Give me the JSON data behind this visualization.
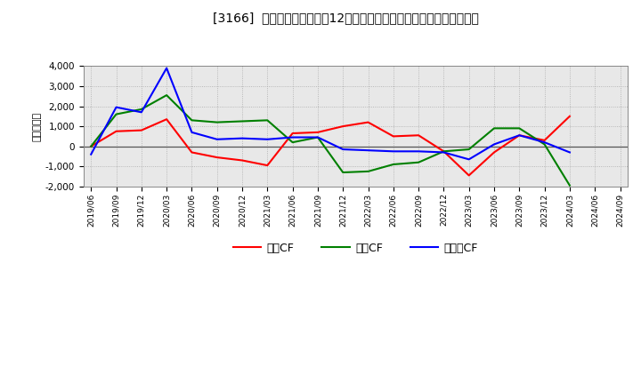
{
  "title": "[3166]  キャッシュフローの12か月移動合計の対前年同期増減額の推移",
  "ylabel": "（百万円）",
  "ylim": [
    -2000,
    4000
  ],
  "yticks": [
    -2000,
    -1000,
    0,
    1000,
    2000,
    3000,
    4000
  ],
  "x_labels": [
    "2019/06",
    "2019/09",
    "2019/12",
    "2020/03",
    "2020/06",
    "2020/09",
    "2020/12",
    "2021/03",
    "2021/06",
    "2021/09",
    "2021/12",
    "2022/03",
    "2022/06",
    "2022/09",
    "2022/12",
    "2023/03",
    "2023/06",
    "2023/09",
    "2023/12",
    "2024/03",
    "2024/06",
    "2024/09"
  ],
  "eigyo_cf": [
    0,
    750,
    800,
    1350,
    -300,
    -550,
    -700,
    -950,
    650,
    700,
    1000,
    1200,
    500,
    550,
    -250,
    -1450,
    -300,
    550,
    300,
    1500,
    null,
    null
  ],
  "toshi_cf": [
    0,
    1600,
    1850,
    2550,
    1300,
    1200,
    1250,
    1300,
    200,
    450,
    -1300,
    -1250,
    -900,
    -800,
    -250,
    -150,
    900,
    900,
    100,
    -1950,
    null,
    null
  ],
  "free_cf": [
    -400,
    1950,
    1700,
    3900,
    700,
    350,
    400,
    350,
    450,
    450,
    -150,
    -200,
    -250,
    -250,
    -300,
    -650,
    100,
    550,
    200,
    -300,
    null,
    null
  ],
  "eigyo_color": "#ff0000",
  "toshi_color": "#008000",
  "free_color": "#0000ff",
  "bg_color": "#ffffff",
  "plot_bg_color": "#e8e8e8",
  "grid_color": "#aaaaaa",
  "line_width": 1.5,
  "legend_labels": [
    "営業CF",
    "投資CF",
    "フリーCF"
  ]
}
